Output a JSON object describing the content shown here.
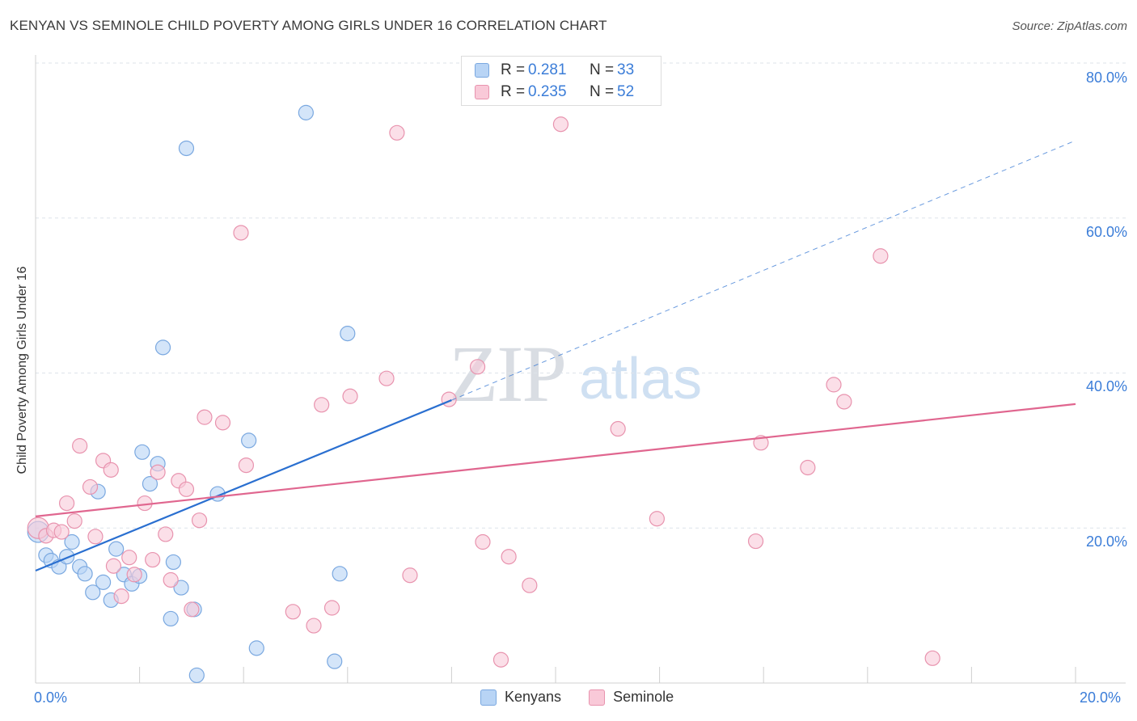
{
  "title": "KENYAN VS SEMINOLE CHILD POVERTY AMONG GIRLS UNDER 16 CORRELATION CHART",
  "source": "Source: ZipAtlas.com",
  "watermark": {
    "zip": "ZIP",
    "atlas": "atlas"
  },
  "colors": {
    "kenyans_fill": "#b8d4f5",
    "kenyans_stroke": "#7aa8e0",
    "kenyans_line": "#2a6fd0",
    "seminole_fill": "#f9c9d8",
    "seminole_stroke": "#e893ae",
    "seminole_line": "#e0668f",
    "grid": "#dde3ea",
    "tick_text": "#3b7dd8"
  },
  "legend_top": {
    "rows": [
      {
        "r_label": "R =",
        "r_value": "0.281",
        "n_label": "N =",
        "n_value": "33"
      },
      {
        "r_label": "R =",
        "r_value": "0.235",
        "n_label": "N =",
        "n_value": "52"
      }
    ]
  },
  "legend_bottom": {
    "items": [
      "Kenyans",
      "Seminole"
    ]
  },
  "chart_data": {
    "type": "scatter",
    "title": "KENYAN VS SEMINOLE CHILD POVERTY AMONG GIRLS UNDER 16 CORRELATION CHART",
    "xlabel": "",
    "ylabel": "Child Poverty Among Girls Under 16",
    "xlim": [
      0,
      20
    ],
    "ylim": [
      0,
      80
    ],
    "x_tick_labels": [
      "0.0%",
      "20.0%"
    ],
    "y_ticks": [
      20,
      40,
      60,
      80
    ],
    "y_tick_labels": [
      "20.0%",
      "40.0%",
      "60.0%",
      "80.0%"
    ],
    "grid": true,
    "legend_position": "top-center",
    "series": [
      {
        "name": "Kenyans",
        "r": 0.281,
        "n": 33,
        "trend": {
          "x0": 0,
          "y0": 14.5,
          "x1": 8,
          "y1": 36.5,
          "dashed_to_x": 20,
          "dashed_to_y": 70
        },
        "points": [
          [
            0.05,
            19.5
          ],
          [
            0.2,
            16.5
          ],
          [
            0.3,
            15.8
          ],
          [
            0.45,
            15.0
          ],
          [
            0.6,
            16.3
          ],
          [
            0.7,
            18.2
          ],
          [
            0.85,
            15.0
          ],
          [
            0.95,
            14.1
          ],
          [
            1.1,
            11.7
          ],
          [
            1.3,
            13.0
          ],
          [
            1.45,
            10.7
          ],
          [
            1.55,
            17.3
          ],
          [
            1.7,
            14.0
          ],
          [
            1.85,
            12.8
          ],
          [
            2.0,
            13.8
          ],
          [
            2.05,
            29.8
          ],
          [
            2.2,
            25.7
          ],
          [
            2.35,
            28.3
          ],
          [
            2.45,
            43.3
          ],
          [
            2.6,
            8.3
          ],
          [
            2.65,
            15.6
          ],
          [
            2.8,
            12.3
          ],
          [
            2.9,
            69.0
          ],
          [
            3.05,
            9.5
          ],
          [
            3.1,
            1.0
          ],
          [
            3.5,
            24.4
          ],
          [
            4.1,
            31.3
          ],
          [
            4.25,
            4.5
          ],
          [
            5.2,
            73.6
          ],
          [
            5.75,
            2.8
          ],
          [
            5.85,
            14.1
          ],
          [
            6.0,
            45.1
          ],
          [
            1.2,
            24.7
          ]
        ]
      },
      {
        "name": "Seminole",
        "r": 0.235,
        "n": 52,
        "trend": {
          "x0": 0,
          "y0": 21.5,
          "x1": 20,
          "y1": 36.0
        },
        "points": [
          [
            0.05,
            20.0
          ],
          [
            0.2,
            19.0
          ],
          [
            0.35,
            19.7
          ],
          [
            0.5,
            19.5
          ],
          [
            0.6,
            23.2
          ],
          [
            0.75,
            20.9
          ],
          [
            0.85,
            30.6
          ],
          [
            1.05,
            25.3
          ],
          [
            1.15,
            18.9
          ],
          [
            1.3,
            28.7
          ],
          [
            1.45,
            27.5
          ],
          [
            1.5,
            15.1
          ],
          [
            1.65,
            11.2
          ],
          [
            1.8,
            16.2
          ],
          [
            1.9,
            14.0
          ],
          [
            2.1,
            23.2
          ],
          [
            2.25,
            15.9
          ],
          [
            2.35,
            27.2
          ],
          [
            2.5,
            19.2
          ],
          [
            2.6,
            13.3
          ],
          [
            2.75,
            26.1
          ],
          [
            2.9,
            25.0
          ],
          [
            3.0,
            9.5
          ],
          [
            3.15,
            21.0
          ],
          [
            3.25,
            34.3
          ],
          [
            3.6,
            33.6
          ],
          [
            3.95,
            58.1
          ],
          [
            4.05,
            28.1
          ],
          [
            4.95,
            9.2
          ],
          [
            5.35,
            7.4
          ],
          [
            5.5,
            35.9
          ],
          [
            5.7,
            9.7
          ],
          [
            6.05,
            37.0
          ],
          [
            6.75,
            39.3
          ],
          [
            6.95,
            71.0
          ],
          [
            7.2,
            13.9
          ],
          [
            7.95,
            36.6
          ],
          [
            8.5,
            40.8
          ],
          [
            8.6,
            18.2
          ],
          [
            8.95,
            3.0
          ],
          [
            9.1,
            16.3
          ],
          [
            9.5,
            12.6
          ],
          [
            10.1,
            72.1
          ],
          [
            11.2,
            32.8
          ],
          [
            11.95,
            21.2
          ],
          [
            13.85,
            18.3
          ],
          [
            13.95,
            31.0
          ],
          [
            14.85,
            27.8
          ],
          [
            15.35,
            38.5
          ],
          [
            15.55,
            36.3
          ],
          [
            16.25,
            55.1
          ],
          [
            17.25,
            3.2
          ]
        ]
      }
    ]
  }
}
